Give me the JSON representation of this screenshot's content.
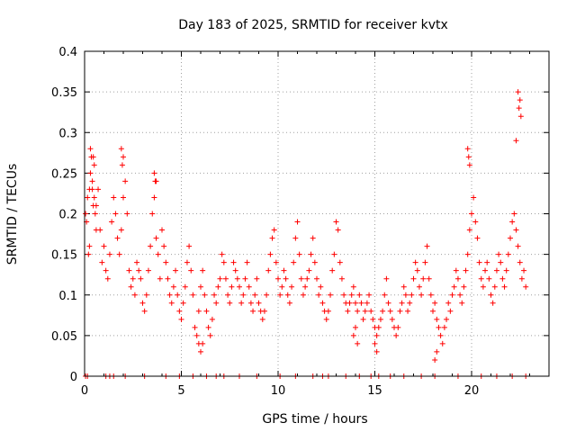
{
  "chart_data": {
    "type": "scatter",
    "title": "Day 183 of 2025, SRMTID for receiver kvtx",
    "xlabel": "GPS time / hours",
    "ylabel": "SRMTID / TECUs",
    "xlim": [
      0,
      24
    ],
    "ylim": [
      0,
      0.4
    ],
    "xticks": [
      0,
      5,
      10,
      15,
      20
    ],
    "xtick_labels": [
      "0",
      "5",
      "10",
      "15",
      "20"
    ],
    "yticks": [
      0,
      0.05,
      0.1,
      0.15,
      0.2,
      0.25,
      0.3,
      0.35,
      0.4
    ],
    "ytick_labels": [
      "0",
      "0.05",
      "0.1",
      "0.15",
      "0.2",
      "0.25",
      "0.3",
      "0.35",
      "0.4"
    ],
    "grid": true,
    "marker": "+",
    "color": "#ff0000",
    "series": [
      {
        "name": "SRMTID",
        "x": [
          0.05,
          0.1,
          0.15,
          0.2,
          0.25,
          0.3,
          0.35,
          0.4,
          0.45,
          0.5,
          0.55,
          0.6,
          0.7,
          0.8,
          0.9,
          1.0,
          1.1,
          1.2,
          1.3,
          1.4,
          1.5,
          1.6,
          1.7,
          1.8,
          1.9,
          2.0,
          2.1,
          2.2,
          2.3,
          2.4,
          2.5,
          2.6,
          2.7,
          2.8,
          2.9,
          3.0,
          3.1,
          3.2,
          3.3,
          3.4,
          3.5,
          3.6,
          3.7,
          3.8,
          3.9,
          4.0,
          4.1,
          4.2,
          4.3,
          4.4,
          4.5,
          4.6,
          4.7,
          4.8,
          4.9,
          5.0,
          5.1,
          5.2,
          5.3,
          5.4,
          5.5,
          5.6,
          5.7,
          5.8,
          5.9,
          6.0,
          6.1,
          6.2,
          6.3,
          6.4,
          6.5,
          6.6,
          6.7,
          6.8,
          6.9,
          7.0,
          7.1,
          7.2,
          7.3,
          7.4,
          7.5,
          7.6,
          7.7,
          7.8,
          7.9,
          8.0,
          8.1,
          8.2,
          8.3,
          8.4,
          8.5,
          8.6,
          8.7,
          8.8,
          8.9,
          9.0,
          9.1,
          9.2,
          9.3,
          9.4,
          9.5,
          9.6,
          9.7,
          9.8,
          9.9,
          10.0,
          10.1,
          10.2,
          10.3,
          10.4,
          10.5,
          10.6,
          10.7,
          10.8,
          10.9,
          11.0,
          11.1,
          11.2,
          11.3,
          11.4,
          11.5,
          11.6,
          11.7,
          11.8,
          11.9,
          12.0,
          12.1,
          12.2,
          12.3,
          12.4,
          12.5,
          12.6,
          12.7,
          12.8,
          12.9,
          13.0,
          13.1,
          13.2,
          13.3,
          13.4,
          13.5,
          13.6,
          13.7,
          13.8,
          13.9,
          14.0,
          14.1,
          14.2,
          14.3,
          14.4,
          14.5,
          14.6,
          14.7,
          14.8,
          14.9,
          15.0,
          15.1,
          15.2,
          15.3,
          15.4,
          15.5,
          15.6,
          15.7,
          15.8,
          15.9,
          16.0,
          16.1,
          16.2,
          16.3,
          16.4,
          16.5,
          16.6,
          16.7,
          16.8,
          16.9,
          17.0,
          17.1,
          17.2,
          17.3,
          17.4,
          17.5,
          17.6,
          17.7,
          17.8,
          17.9,
          18.0,
          18.1,
          18.2,
          18.3,
          18.4,
          18.5,
          18.6,
          18.7,
          18.8,
          18.9,
          19.0,
          19.1,
          19.2,
          19.3,
          19.4,
          19.5,
          19.6,
          19.7,
          19.8,
          19.9,
          20.0,
          20.1,
          20.2,
          20.3,
          20.4,
          20.5,
          20.6,
          20.7,
          20.8,
          20.9,
          21.0,
          21.1,
          21.2,
          21.3,
          21.4,
          21.5,
          21.6,
          21.7,
          21.8,
          21.9,
          22.0,
          22.1,
          22.2,
          22.3,
          22.4,
          22.5,
          22.6,
          22.7,
          22.8,
          0.3,
          0.45,
          0.5,
          0.6,
          0.25,
          0.4,
          1.9,
          2.0,
          1.95,
          3.6,
          3.7,
          3.65,
          5.9,
          6.0,
          6.1,
          13.9,
          14.0,
          14.1,
          15.0,
          15.1,
          18.1,
          18.2,
          19.8,
          19.85,
          19.9,
          22.4,
          22.5,
          22.45,
          22.55,
          22.3,
          0.05,
          0.15,
          1.1,
          1.3,
          1.5,
          2.1,
          3.1,
          4.2,
          4.9,
          5.6,
          6.3,
          6.8,
          7.2,
          8.0,
          8.9,
          10.1,
          10.9,
          11.8,
          12.3,
          12.6,
          13.5,
          14.2,
          14.8,
          15.2,
          15.8,
          16.5,
          17.4,
          18.1,
          19.3,
          20.5,
          21.3,
          22.1,
          22.8
        ],
        "y": [
          0.2,
          0.19,
          0.22,
          0.15,
          0.16,
          0.25,
          0.27,
          0.23,
          0.21,
          0.22,
          0.2,
          0.18,
          0.23,
          0.18,
          0.14,
          0.16,
          0.13,
          0.12,
          0.15,
          0.19,
          0.22,
          0.2,
          0.17,
          0.15,
          0.18,
          0.22,
          0.24,
          0.2,
          0.13,
          0.11,
          0.12,
          0.1,
          0.14,
          0.13,
          0.12,
          0.09,
          0.08,
          0.1,
          0.13,
          0.16,
          0.2,
          0.22,
          0.17,
          0.15,
          0.12,
          0.18,
          0.16,
          0.14,
          0.12,
          0.1,
          0.09,
          0.11,
          0.13,
          0.1,
          0.08,
          0.07,
          0.09,
          0.11,
          0.14,
          0.16,
          0.13,
          0.1,
          0.06,
          0.05,
          0.08,
          0.11,
          0.13,
          0.1,
          0.08,
          0.06,
          0.05,
          0.07,
          0.1,
          0.09,
          0.11,
          0.12,
          0.15,
          0.14,
          0.12,
          0.1,
          0.09,
          0.11,
          0.14,
          0.13,
          0.12,
          0.11,
          0.09,
          0.1,
          0.12,
          0.14,
          0.11,
          0.09,
          0.08,
          0.1,
          0.12,
          0.09,
          0.08,
          0.07,
          0.08,
          0.1,
          0.13,
          0.15,
          0.17,
          0.18,
          0.14,
          0.12,
          0.1,
          0.11,
          0.13,
          0.12,
          0.1,
          0.09,
          0.11,
          0.14,
          0.17,
          0.19,
          0.15,
          0.12,
          0.1,
          0.11,
          0.12,
          0.13,
          0.15,
          0.17,
          0.14,
          0.12,
          0.1,
          0.11,
          0.09,
          0.08,
          0.07,
          0.08,
          0.1,
          0.13,
          0.15,
          0.19,
          0.18,
          0.14,
          0.12,
          0.1,
          0.09,
          0.08,
          0.09,
          0.1,
          0.11,
          0.09,
          0.08,
          0.1,
          0.09,
          0.07,
          0.08,
          0.09,
          0.1,
          0.08,
          0.07,
          0.06,
          0.05,
          0.06,
          0.07,
          0.08,
          0.1,
          0.12,
          0.09,
          0.08,
          0.07,
          0.06,
          0.05,
          0.06,
          0.08,
          0.09,
          0.11,
          0.1,
          0.08,
          0.09,
          0.1,
          0.12,
          0.14,
          0.13,
          0.11,
          0.1,
          0.12,
          0.14,
          0.16,
          0.12,
          0.1,
          0.08,
          0.09,
          0.07,
          0.06,
          0.05,
          0.04,
          0.06,
          0.07,
          0.09,
          0.08,
          0.1,
          0.11,
          0.13,
          0.12,
          0.1,
          0.09,
          0.11,
          0.13,
          0.15,
          0.18,
          0.2,
          0.22,
          0.19,
          0.17,
          0.14,
          0.12,
          0.11,
          0.13,
          0.14,
          0.12,
          0.1,
          0.09,
          0.11,
          0.13,
          0.15,
          0.14,
          0.12,
          0.11,
          0.13,
          0.15,
          0.17,
          0.19,
          0.2,
          0.18,
          0.16,
          0.14,
          0.12,
          0.13,
          0.11,
          0.28,
          0.27,
          0.26,
          0.21,
          0.23,
          0.24,
          0.28,
          0.27,
          0.26,
          0.25,
          0.24,
          0.24,
          0.04,
          0.03,
          0.04,
          0.05,
          0.06,
          0.04,
          0.04,
          0.03,
          0.02,
          0.03,
          0.28,
          0.27,
          0.26,
          0.35,
          0.34,
          0.33,
          0.32,
          0.29,
          0.0,
          0.0,
          0.0,
          0.0,
          0.0,
          0.0,
          0.0,
          0.0,
          0.0,
          0.0,
          0.0,
          0.0,
          0.0,
          0.0,
          0.0,
          0.0,
          0.0,
          0.0,
          0.0,
          0.0,
          0.0,
          0.0,
          0.0,
          0.0,
          0.0,
          0.0,
          0.0,
          0.0,
          0.0,
          0.0,
          0.0,
          0.0,
          0.0
        ]
      }
    ]
  }
}
